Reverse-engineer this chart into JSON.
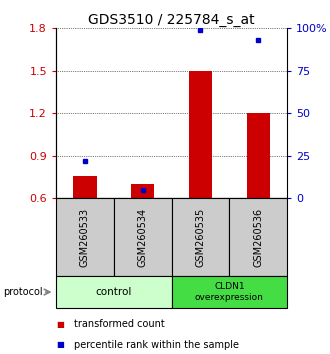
{
  "title": "GDS3510 / 225784_s_at",
  "samples": [
    "GSM260533",
    "GSM260534",
    "GSM260535",
    "GSM260536"
  ],
  "red_values": [
    0.76,
    0.7,
    1.5,
    1.2
  ],
  "blue_pct": [
    22,
    5,
    99,
    93
  ],
  "ylim_left": [
    0.6,
    1.8
  ],
  "ylim_right": [
    0,
    100
  ],
  "yticks_left": [
    0.6,
    0.9,
    1.2,
    1.5,
    1.8
  ],
  "ytick_labels_left": [
    "0.6",
    "0.9",
    "1.2",
    "1.5",
    "1.8"
  ],
  "yticks_right": [
    0,
    25,
    50,
    75,
    100
  ],
  "ytick_labels_right": [
    "0",
    "25",
    "50",
    "75",
    "100%"
  ],
  "control_color": "#ccffcc",
  "cldn1_color": "#44dd44",
  "sample_box_color": "#cccccc",
  "protocol_label": "protocol",
  "legend_red": "transformed count",
  "legend_blue": "percentile rank within the sample",
  "red_color": "#cc0000",
  "blue_color": "#0000cc",
  "bar_width": 0.4,
  "title_fontsize": 10,
  "tick_fontsize": 8,
  "label_fontsize": 7,
  "legend_fontsize": 7
}
